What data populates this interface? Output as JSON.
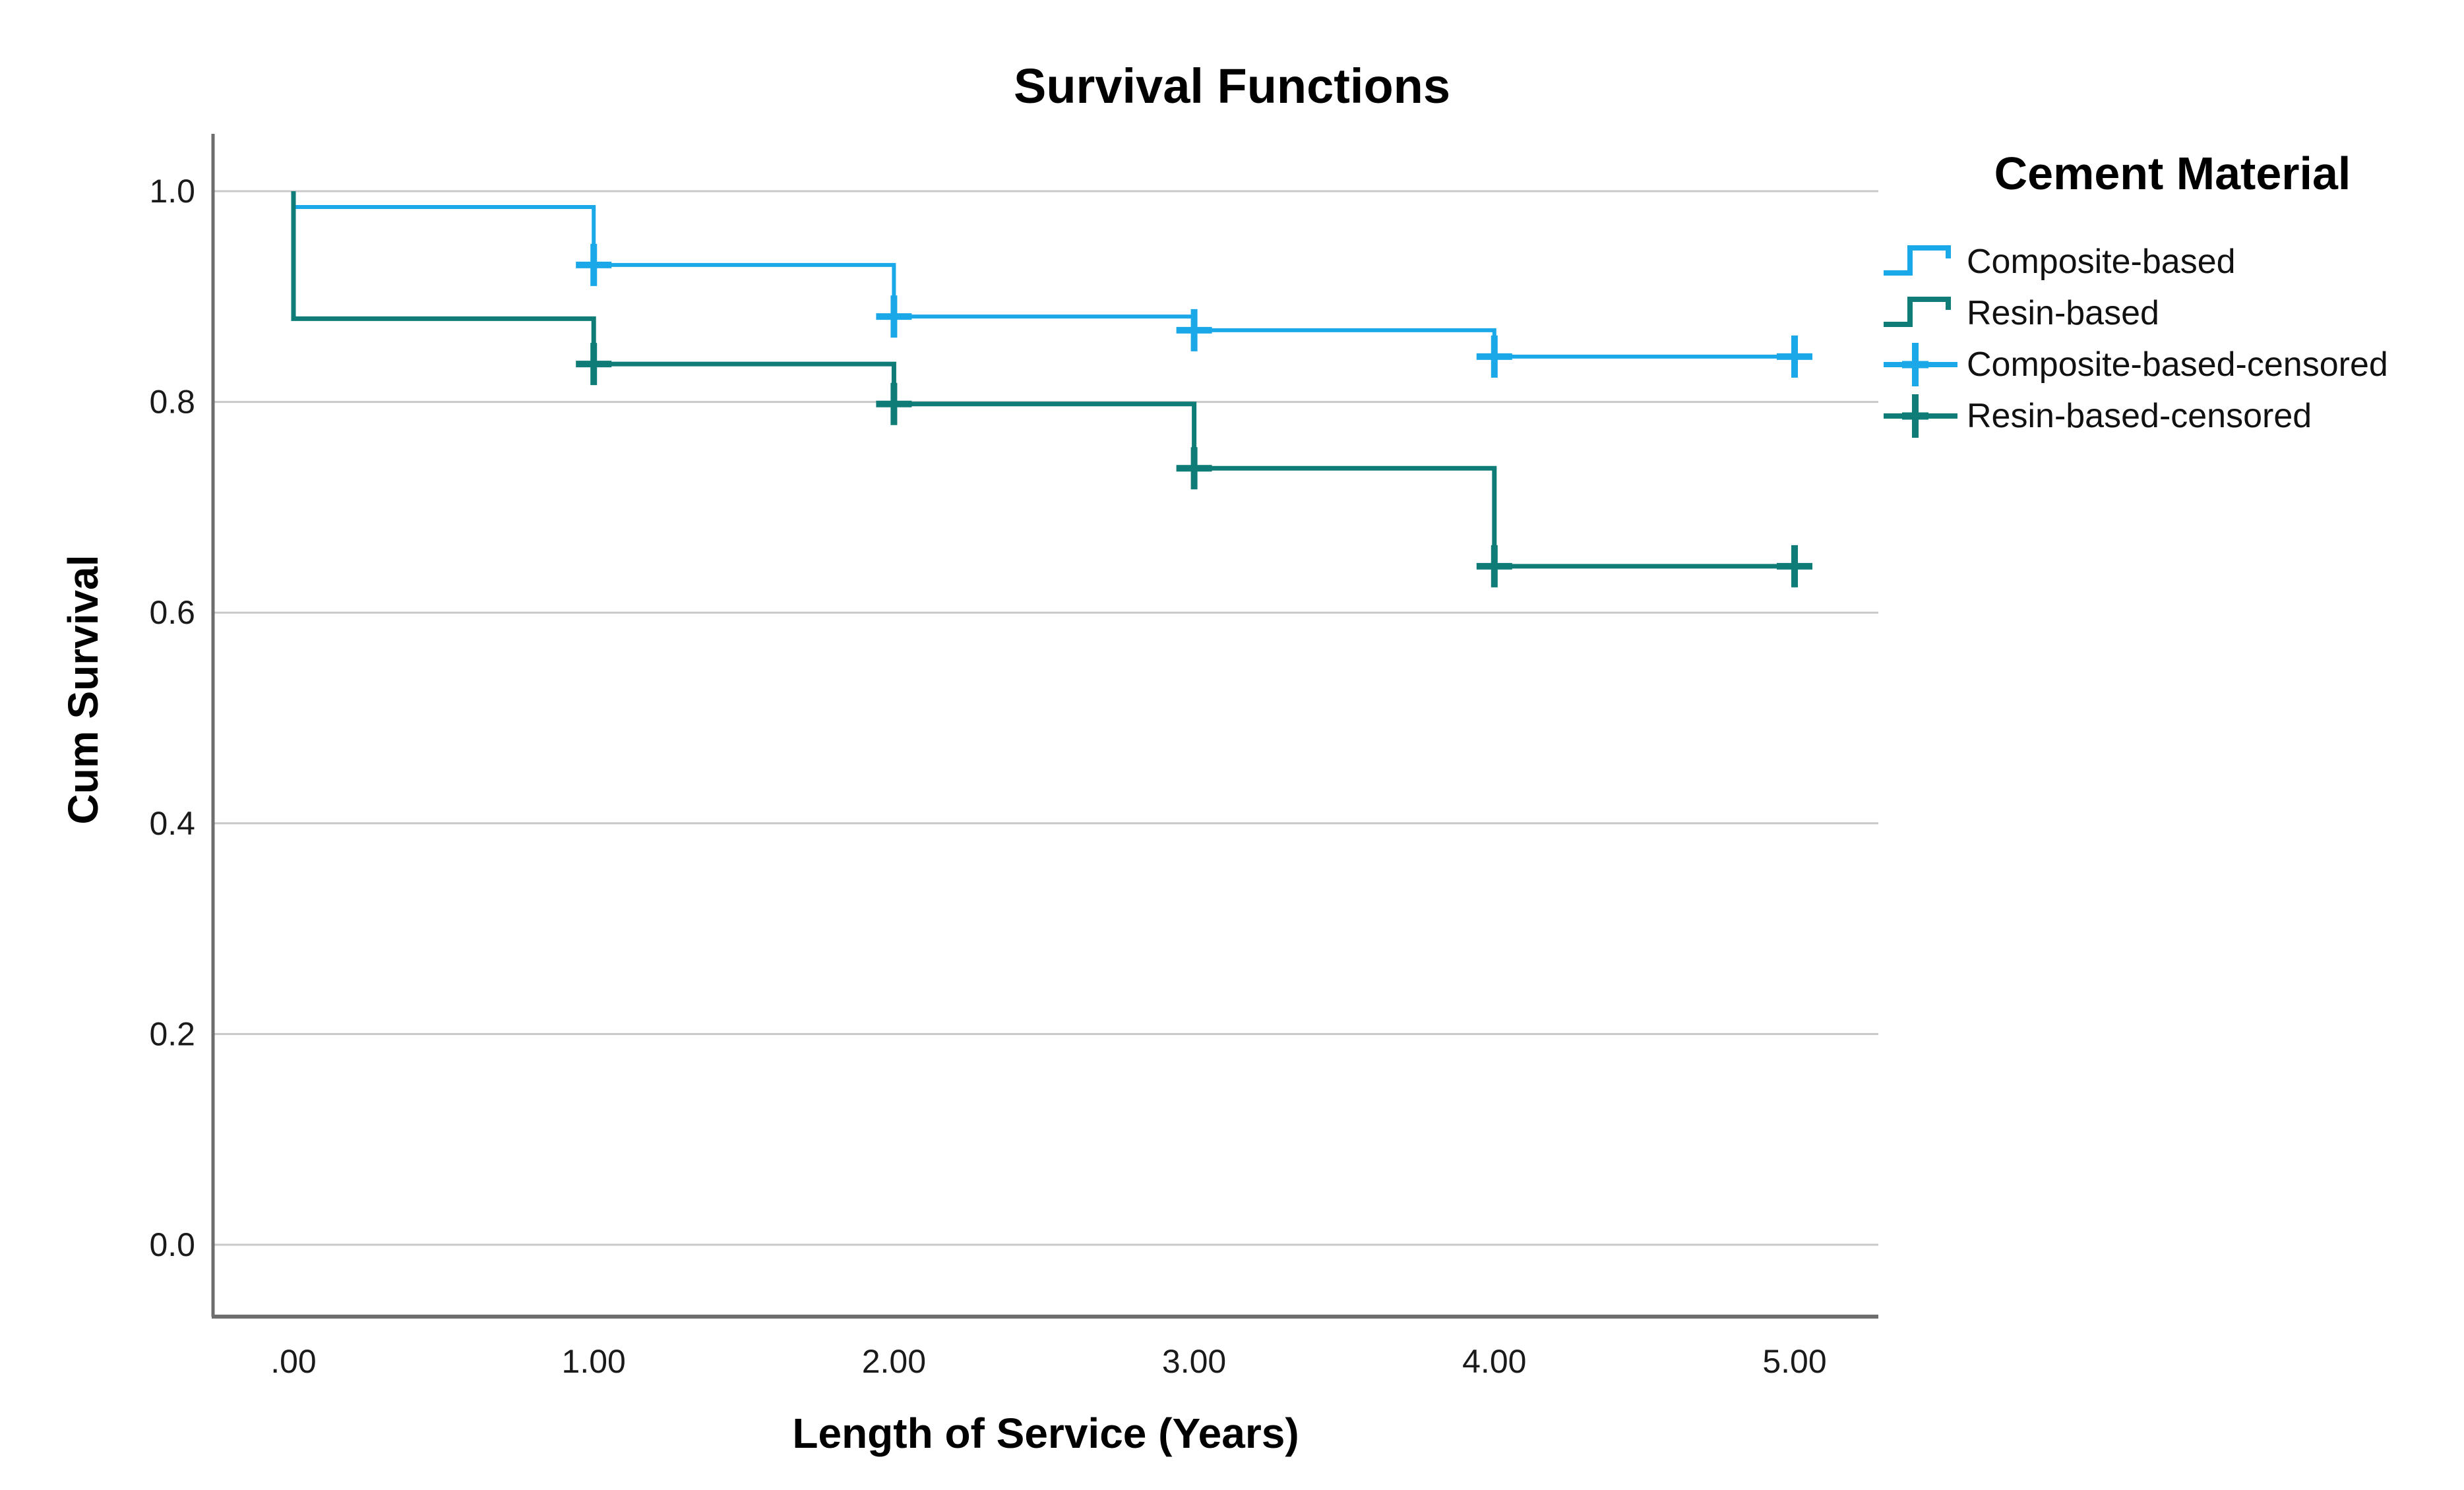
{
  "chart_data": {
    "type": "line",
    "subtype": "kaplan-meier-step-survival",
    "title": "Survival Functions",
    "xlabel": "Length of Service (Years)",
    "ylabel": "Cum Survival",
    "x_ticks": [
      ".00",
      "1.00",
      "2.00",
      "3.00",
      "4.00",
      "5.00"
    ],
    "x_tick_values": [
      0,
      1,
      2,
      3,
      4,
      5
    ],
    "y_ticks": [
      "0.0",
      "0.2",
      "0.4",
      "0.6",
      "0.8",
      "1.0"
    ],
    "y_tick_values": [
      0,
      0.2,
      0.4,
      0.6,
      0.8,
      1.0
    ],
    "xlim": [
      -0.27,
      5.28
    ],
    "ylim": [
      -0.07,
      1.05
    ],
    "grid": "horizontal-only",
    "legend_position": "right",
    "series": [
      {
        "name": "Composite-based",
        "color": "#1BA8E9",
        "steps": [
          [
            0,
            1.0
          ],
          [
            0,
            0.985
          ],
          [
            1,
            0.93
          ],
          [
            2,
            0.881
          ],
          [
            3,
            0.868
          ],
          [
            4,
            0.843
          ],
          [
            5,
            0.843
          ]
        ],
        "censored": [
          [
            1,
            0.93
          ],
          [
            2,
            0.881
          ],
          [
            3,
            0.868
          ],
          [
            4,
            0.843
          ],
          [
            5,
            0.843
          ]
        ]
      },
      {
        "name": "Resin-based",
        "color": "#0F7C77",
        "steps": [
          [
            0,
            1.0
          ],
          [
            0,
            0.879
          ],
          [
            1,
            0.836
          ],
          [
            2,
            0.798
          ],
          [
            3,
            0.737
          ],
          [
            4,
            0.644
          ],
          [
            5,
            0.644
          ]
        ],
        "censored": [
          [
            1,
            0.836
          ],
          [
            2,
            0.798
          ],
          [
            3,
            0.737
          ],
          [
            4,
            0.644
          ],
          [
            5,
            0.644
          ]
        ]
      }
    ],
    "legend": {
      "title": "Cement Material",
      "entries": [
        {
          "label": "Composite-based",
          "symbol": "step",
          "color": "#1BA8E9"
        },
        {
          "label": "Resin-based",
          "symbol": "step",
          "color": "#0F7C77"
        },
        {
          "label": "Composite-based-censored",
          "symbol": "censor",
          "color": "#1BA8E9"
        },
        {
          "label": "Resin-based-censored",
          "symbol": "censor",
          "color": "#0F7C77"
        }
      ]
    },
    "colors": {
      "gridline": "#C9C9C9",
      "axis": "#6E6E6E",
      "tick_text": "#1a1a1a",
      "background": "#FFFFFF"
    }
  }
}
